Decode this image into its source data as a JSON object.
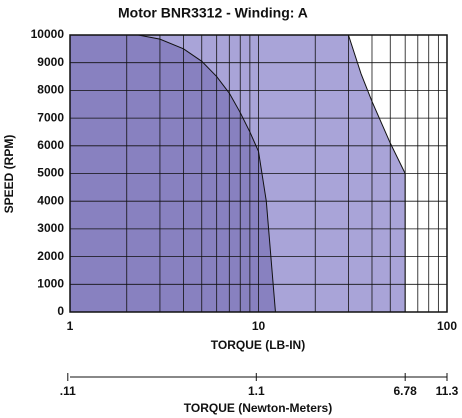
{
  "chart_data": {
    "type": "area",
    "title": "Motor BNR3312 - Winding: A",
    "xlabel": "TORQUE (LB-IN)",
    "ylabel": "SPEED (RPM)",
    "x2label": "TORQUE (Newton-Meters)",
    "xscale": "log",
    "xlim": [
      1,
      100
    ],
    "xticks": [
      1,
      10,
      100
    ],
    "ylim": [
      0,
      10000
    ],
    "yticks": [
      0,
      1000,
      2000,
      3000,
      4000,
      5000,
      6000,
      7000,
      8000,
      9000,
      10000
    ],
    "x2lim": [
      0.113,
      11.3
    ],
    "x2ticks": [
      {
        "value": 0.11,
        "label": ".11"
      },
      1.1,
      6.78,
      11.3
    ],
    "grid": true,
    "series": [
      {
        "color": "#a9a4d8",
        "x": [
          1,
          30,
          35,
          40,
          50,
          60,
          60
        ],
        "values": [
          10000,
          10000,
          8600,
          7600,
          6100,
          5000,
          0
        ]
      },
      {
        "color": "#8881c0",
        "x": [
          1,
          2.3,
          3,
          4,
          5,
          6,
          7,
          8,
          9,
          10,
          11,
          12.3
        ],
        "values": [
          10000,
          10000,
          9850,
          9500,
          9050,
          8500,
          7900,
          7200,
          6500,
          5800,
          4000,
          0
        ]
      }
    ]
  }
}
